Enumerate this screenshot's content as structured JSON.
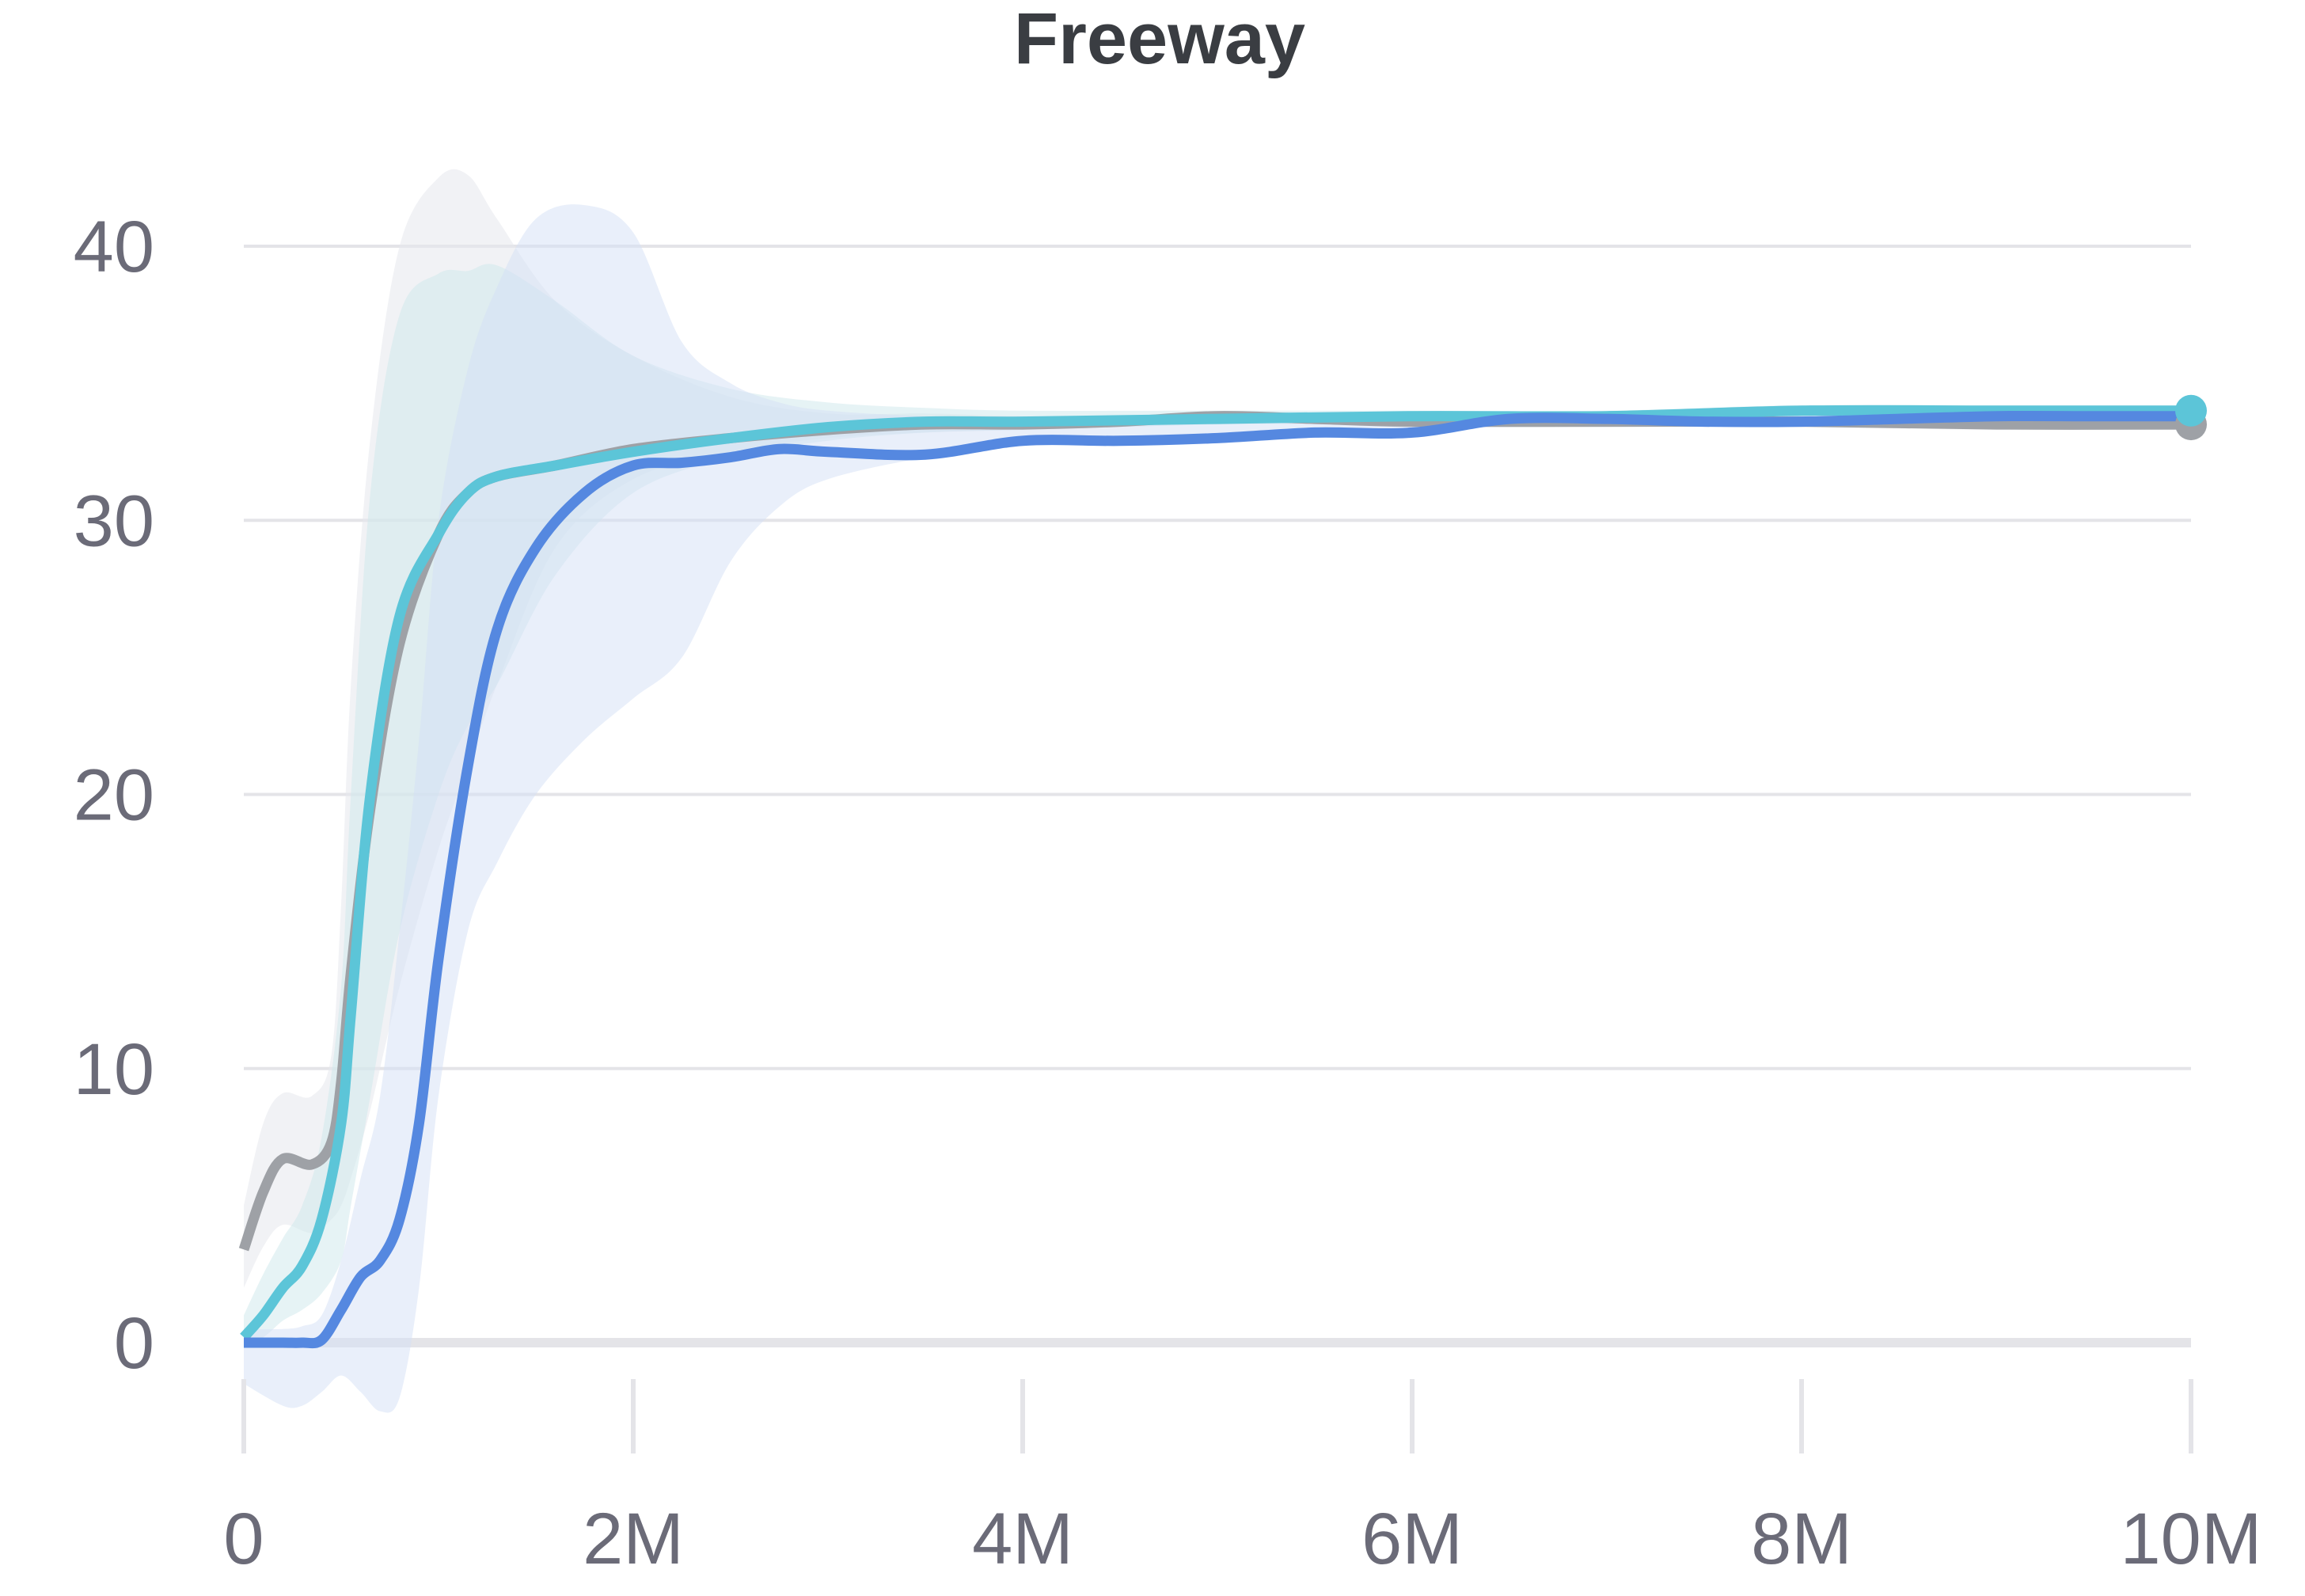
{
  "chart_data": {
    "type": "line",
    "title": "Freeway",
    "xlabel": "",
    "ylabel": "",
    "xlim": [
      0,
      10000000
    ],
    "ylim": [
      -2.5,
      42.5
    ],
    "x_ticks": [
      0,
      2000000,
      4000000,
      6000000,
      8000000,
      10000000
    ],
    "x_tick_labels": [
      "0",
      "2M",
      "4M",
      "6M",
      "8M",
      "10M"
    ],
    "y_ticks": [
      0,
      10,
      20,
      30,
      40
    ],
    "y_tick_labels": [
      "0",
      "10",
      "20",
      "30",
      "40"
    ],
    "grid": true,
    "legend": "none",
    "colors": {
      "gray": "#9ea1a6",
      "cyan": "#5cc5d8",
      "blue": "#5588e0",
      "band_gray": "#e6e8ec",
      "band_cyan": "#cde8ec",
      "band_blue": "#d4e0f6",
      "grid": "#e4e4e8",
      "title": "#3a3d42",
      "tick": "#6b6b78"
    },
    "series": [
      {
        "color": "gray",
        "x": [
          0,
          100000,
          200000,
          350000,
          450000,
          500000,
          550000,
          650000,
          800000,
          1000000,
          1150000,
          1300000,
          1600000,
          2000000,
          2500000,
          3000000,
          3500000,
          4000000,
          4500000,
          5000000,
          5500000,
          6000000,
          7000000,
          8000000,
          9000000,
          10000000
        ],
        "y": [
          3.4,
          5.5,
          6.7,
          6.5,
          7.3,
          9.5,
          13.5,
          19.5,
          25.5,
          29.5,
          31.0,
          31.6,
          32.0,
          32.6,
          33.0,
          33.3,
          33.5,
          33.5,
          33.6,
          33.8,
          33.7,
          33.6,
          33.6,
          33.6,
          33.5,
          33.5
        ],
        "band_upper": [
          5.0,
          8.0,
          9.1,
          9.0,
          10.5,
          16,
          24,
          33,
          40,
          42.5,
          42.6,
          41.0,
          38.0,
          36.0,
          34.5,
          33.9,
          33.9,
          33.8,
          33.8,
          33.9,
          33.9,
          33.8,
          33.8,
          33.8,
          33.8,
          33.8
        ],
        "band_lower": [
          2.0,
          3.5,
          4.3,
          4.0,
          4.5,
          5.0,
          6.0,
          8.5,
          13.0,
          18.0,
          21.0,
          24.0,
          29.0,
          31.5,
          32.5,
          33.0,
          33.2,
          33.3,
          33.4,
          33.5,
          33.5,
          33.4,
          33.4,
          33.4,
          33.3,
          33.3
        ]
      },
      {
        "color": "cyan",
        "x": [
          0,
          100000,
          200000,
          300000,
          400000,
          500000,
          550000,
          650000,
          800000,
          1000000,
          1150000,
          1300000,
          1600000,
          2000000,
          2500000,
          3000000,
          3500000,
          4000000,
          5000000,
          6000000,
          7000000,
          8000000,
          9000000,
          10000000
        ],
        "y": [
          0.2,
          1.0,
          2.0,
          2.8,
          4.5,
          8.0,
          12.0,
          20.0,
          26.5,
          29.5,
          31.0,
          31.6,
          32.0,
          32.5,
          33.0,
          33.4,
          33.6,
          33.6,
          33.7,
          33.8,
          33.8,
          34.0,
          34.0,
          34.0
        ],
        "band_upper": [
          1.0,
          2.5,
          3.8,
          5.0,
          7.5,
          13.0,
          20.0,
          31.0,
          37.5,
          39.0,
          39.1,
          39.3,
          38.0,
          36.0,
          34.8,
          34.3,
          34.1,
          34.0,
          34.0,
          34.0,
          34.0,
          34.2,
          34.2,
          34.2
        ],
        "band_lower": [
          0.0,
          0.2,
          0.8,
          1.2,
          1.8,
          3.0,
          5.0,
          9.0,
          15.0,
          20.0,
          22.5,
          24.0,
          28.0,
          31.0,
          32.3,
          32.9,
          33.2,
          33.3,
          33.5,
          33.6,
          33.6,
          33.8,
          33.8,
          33.8
        ]
      },
      {
        "color": "blue",
        "x": [
          0,
          200000,
          300000,
          400000,
          500000,
          600000,
          700000,
          800000,
          900000,
          1000000,
          1150000,
          1300000,
          1500000,
          1750000,
          2000000,
          2250000,
          2500000,
          2750000,
          3000000,
          3500000,
          4000000,
          4500000,
          5000000,
          5500000,
          6000000,
          6500000,
          7000000,
          7500000,
          8000000,
          8500000,
          9000000,
          9500000,
          10000000
        ],
        "y": [
          0,
          0,
          0,
          0.1,
          1.2,
          2.4,
          3.0,
          4.5,
          8.0,
          14.0,
          21.0,
          26.0,
          29.0,
          31.0,
          32.0,
          32.1,
          32.3,
          32.6,
          32.5,
          32.4,
          32.9,
          32.9,
          33.0,
          33.2,
          33.2,
          33.7,
          33.7,
          33.6,
          33.6,
          33.7,
          33.8,
          33.8,
          33.8
        ],
        "band_upper": [
          0.5,
          0.5,
          0.6,
          1.0,
          3.0,
          6.0,
          9.0,
          15.0,
          22.0,
          30.0,
          35.5,
          38.5,
          41.0,
          41.5,
          40.5,
          36.5,
          35.0,
          34.3,
          34.0,
          33.8,
          33.8,
          33.8,
          33.8,
          33.9,
          33.9,
          33.9,
          33.9,
          33.9,
          34.0,
          34.0,
          34.0,
          34.0,
          34.0
        ],
        "band_lower": [
          -1.5,
          -2.3,
          -2.3,
          -1.8,
          -1.2,
          -1.8,
          -2.5,
          -2.0,
          2.0,
          9.0,
          15.0,
          17.5,
          20.0,
          22.0,
          23.5,
          25.0,
          28.5,
          30.5,
          31.5,
          32.3,
          32.8,
          33.0,
          33.1,
          33.3,
          33.3,
          33.6,
          33.6,
          33.5,
          33.5,
          33.6,
          33.7,
          33.7,
          33.7
        ]
      }
    ]
  }
}
